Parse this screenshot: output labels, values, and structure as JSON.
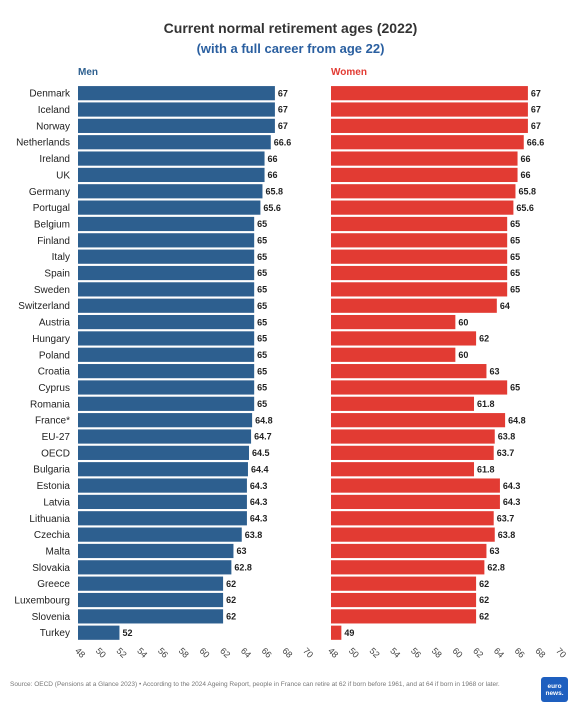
{
  "chart_data": {
    "type": "bar",
    "orientation": "horizontal",
    "title": "Current normal retirement ages (2022)",
    "subtitle": "(with a full career from age 22)",
    "categories": [
      "Denmark",
      "Iceland",
      "Norway",
      "Netherlands",
      "Ireland",
      "UK",
      "Germany",
      "Portugal",
      "Belgium",
      "Finland",
      "Italy",
      "Spain",
      "Sweden",
      "Switzerland",
      "Austria",
      "Hungary",
      "Poland",
      "Croatia",
      "Cyprus",
      "Romania",
      "France*",
      "EU-27",
      "OECD",
      "Bulgaria",
      "Estonia",
      "Latvia",
      "Lithuania",
      "Czechia",
      "Malta",
      "Slovakia",
      "Greece",
      "Luxembourg",
      "Slovenia",
      "Turkey"
    ],
    "series": [
      {
        "name": "Men",
        "color": "#2d5f8f",
        "values": [
          67,
          67,
          67,
          66.6,
          66,
          66,
          65.8,
          65.6,
          65,
          65,
          65,
          65,
          65,
          65,
          65,
          65,
          65,
          65,
          65,
          65,
          64.8,
          64.7,
          64.5,
          64.4,
          64.3,
          64.3,
          64.3,
          63.8,
          63,
          62.8,
          62,
          62,
          62,
          52
        ],
        "labels": [
          "67",
          "67",
          "67",
          "66.6",
          "66",
          "66",
          "65.8",
          "65.6",
          "65",
          "65",
          "65",
          "65",
          "65",
          "65",
          "65",
          "65",
          "65",
          "65",
          "65",
          "65",
          "64.8",
          "64.7",
          "64.5",
          "64.4",
          "64.3",
          "64.3",
          "64.3",
          "63.8",
          "63",
          "62.8",
          "62",
          "62",
          "62",
          "52"
        ]
      },
      {
        "name": "Women",
        "color": "#e23b33",
        "values": [
          67,
          67,
          67,
          66.6,
          66,
          66,
          65.8,
          65.6,
          65,
          65,
          65,
          65,
          65,
          64,
          60,
          62,
          60,
          63,
          65,
          61.8,
          64.8,
          63.8,
          63.7,
          61.8,
          64.3,
          64.3,
          63.7,
          63.8,
          63,
          62.8,
          62,
          62,
          62,
          49
        ],
        "labels": [
          "67",
          "67",
          "67",
          "66.6",
          "66",
          "66",
          "65.8",
          "65.6",
          "65",
          "65",
          "65",
          "65",
          "65",
          "64",
          "60",
          "62",
          "60",
          "63",
          "65",
          "61.8",
          "64.8",
          "63.8",
          "63.7",
          "61.8",
          "64.3",
          "64.3",
          "63.7",
          "63.8",
          "63",
          "62.8",
          "62",
          "62",
          "62",
          "49"
        ]
      }
    ],
    "xlim": [
      48,
      70
    ],
    "xticks": [
      "48",
      "50",
      "52",
      "54",
      "56",
      "58",
      "60",
      "62",
      "64",
      "66",
      "68",
      "70"
    ]
  },
  "footer": "Source: OECD (Pensions at a Glance 2023) • According to the 2024 Ageing Report, people in France can retire at 62 if born before 1961, and at 64 if born in 1968 or later.",
  "logo": {
    "line1": "euro",
    "line2": "news."
  }
}
